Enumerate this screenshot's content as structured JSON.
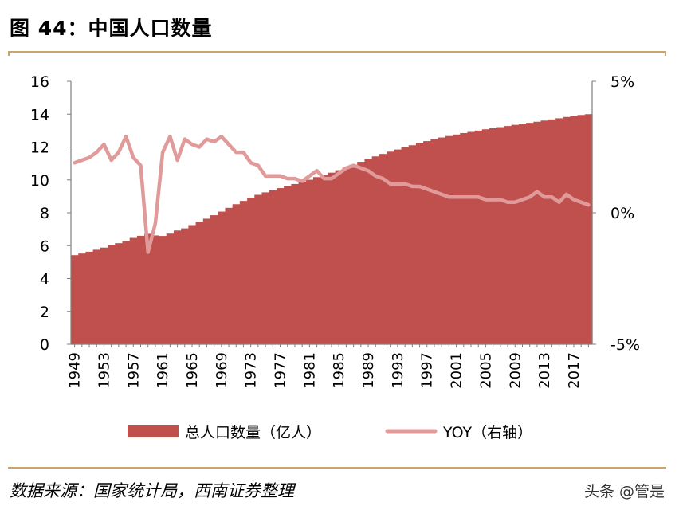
{
  "title": "图 44：中国人口数量",
  "source": "数据来源：国家统计局，西南证券整理",
  "watermark": "头条 @管是",
  "colors": {
    "area": "#c0504d",
    "line": "#e09a9a",
    "rule": "#c9a56b",
    "axis": "#7f7f7f"
  },
  "chart_data": {
    "type": "area",
    "title": "中国人口数量",
    "x": [
      1949,
      1950,
      1951,
      1952,
      1953,
      1954,
      1955,
      1956,
      1957,
      1958,
      1959,
      1960,
      1961,
      1962,
      1963,
      1964,
      1965,
      1966,
      1967,
      1968,
      1969,
      1970,
      1971,
      1972,
      1973,
      1974,
      1975,
      1976,
      1977,
      1978,
      1979,
      1980,
      1981,
      1982,
      1983,
      1984,
      1985,
      1986,
      1987,
      1988,
      1989,
      1990,
      1991,
      1992,
      1993,
      1994,
      1995,
      1996,
      1997,
      1998,
      1999,
      2000,
      2001,
      2002,
      2003,
      2004,
      2005,
      2006,
      2007,
      2008,
      2009,
      2010,
      2011,
      2012,
      2013,
      2014,
      2015,
      2016,
      2017,
      2018,
      2019
    ],
    "x_tick_labels": [
      "1949",
      "1953",
      "1957",
      "1961",
      "1965",
      "1969",
      "1973",
      "1977",
      "1981",
      "1985",
      "1989",
      "1993",
      "1997",
      "2001",
      "2005",
      "2009",
      "2013",
      "2017"
    ],
    "series": [
      {
        "name": "总人口数量（亿人）",
        "axis": "left",
        "style": "area",
        "values": [
          5.42,
          5.52,
          5.63,
          5.75,
          5.88,
          6.03,
          6.15,
          6.28,
          6.47,
          6.6,
          6.72,
          6.62,
          6.59,
          6.73,
          6.92,
          7.05,
          7.25,
          7.45,
          7.64,
          7.85,
          8.07,
          8.3,
          8.52,
          8.72,
          8.92,
          9.09,
          9.24,
          9.37,
          9.5,
          9.63,
          9.75,
          9.87,
          10.01,
          10.17,
          10.3,
          10.44,
          10.59,
          10.75,
          10.93,
          11.1,
          11.27,
          11.43,
          11.58,
          11.72,
          11.85,
          11.99,
          12.11,
          12.24,
          12.36,
          12.48,
          12.58,
          12.67,
          12.76,
          12.85,
          12.92,
          13.0,
          13.08,
          13.14,
          13.21,
          13.28,
          13.35,
          13.41,
          13.47,
          13.54,
          13.61,
          13.68,
          13.75,
          13.83,
          13.9,
          13.95,
          14.0
        ]
      },
      {
        "name": "YOY（右轴）",
        "axis": "right",
        "style": "line",
        "values": [
          1.9,
          2.0,
          2.1,
          2.3,
          2.6,
          2.0,
          2.3,
          2.9,
          2.1,
          1.8,
          -1.5,
          -0.4,
          2.3,
          2.9,
          2.0,
          2.8,
          2.6,
          2.5,
          2.8,
          2.7,
          2.9,
          2.6,
          2.3,
          2.3,
          1.9,
          1.8,
          1.4,
          1.4,
          1.4,
          1.3,
          1.3,
          1.2,
          1.4,
          1.6,
          1.3,
          1.3,
          1.5,
          1.7,
          1.8,
          1.7,
          1.6,
          1.4,
          1.3,
          1.1,
          1.1,
          1.1,
          1.0,
          1.0,
          0.9,
          0.8,
          0.7,
          0.6,
          0.6,
          0.6,
          0.6,
          0.6,
          0.5,
          0.5,
          0.5,
          0.4,
          0.4,
          0.5,
          0.6,
          0.8,
          0.6,
          0.6,
          0.4,
          0.7,
          0.5,
          0.4,
          0.3
        ]
      }
    ],
    "y_left": {
      "lim": [
        0,
        16
      ],
      "ticks": [
        "0",
        "2",
        "4",
        "6",
        "8",
        "10",
        "12",
        "14",
        "16"
      ]
    },
    "y_right": {
      "lim": [
        -5,
        5
      ],
      "ticks": [
        "-5%",
        "0%",
        "5%"
      ]
    },
    "legend": {
      "placement": "bottom",
      "entries": [
        "总人口数量（亿人）",
        "YOY（右轴）"
      ]
    },
    "grid": false
  }
}
